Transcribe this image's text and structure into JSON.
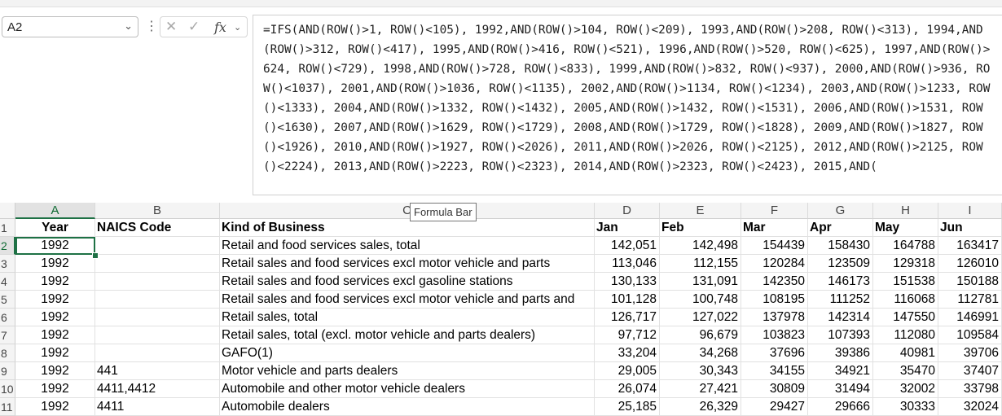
{
  "name_box": {
    "value": "A2"
  },
  "formula_bar": {
    "cancel_symbol": "✕",
    "enter_symbol": "✓",
    "fx_label": "fx",
    "formula": "=IFS(AND(ROW()>1, ROW()<105), 1992,AND(ROW()>104, ROW()<209), 1993,AND(ROW()>208, ROW()<313), 1994,AND(ROW()>312, ROW()<417), 1995,AND(ROW()>416, ROW()<521), 1996,AND(ROW()>520, ROW()<625), 1997,AND(ROW()>624, ROW()<729), 1998,AND(ROW()>728, ROW()<833), 1999,AND(ROW()>832, ROW()<937), 2000,AND(ROW()>936, ROW()<1037), 2001,AND(ROW()>1036, ROW()<1135), 2002,AND(ROW()>1134, ROW()<1234), 2003,AND(ROW()>1233, ROW()<1333), 2004,AND(ROW()>1332, ROW()<1432), 2005,AND(ROW()>1432, ROW()<1531), 2006,AND(ROW()>1531, ROW()<1630), 2007,AND(ROW()>1629, ROW()<1729), 2008,AND(ROW()>1729, ROW()<1828), 2009,AND(ROW()>1827, ROW()<1926), 2010,AND(ROW()>1927, ROW()<2026), 2011,AND(ROW()>2026, ROW()<2125), 2012,AND(ROW()>2125, ROW()<2224), 2013,AND(ROW()>2223, ROW()<2323), 2014,AND(ROW()>2323, ROW()<2423), 2015,AND(",
    "tooltip": "Formula Bar"
  },
  "columns": [
    "A",
    "B",
    "C",
    "D",
    "E",
    "F",
    "G",
    "H",
    "I"
  ],
  "header_row": [
    "Year",
    "NAICS  Code",
    "Kind of Business",
    "Jan",
    "Feb",
    "Mar",
    "Apr",
    "May",
    "Jun"
  ],
  "rows": [
    {
      "num": "2",
      "cells": [
        "1992",
        "",
        "Retail and food services sales, total",
        "142,051",
        "142,498",
        "154439",
        "158430",
        "164788",
        "163417"
      ]
    },
    {
      "num": "3",
      "cells": [
        "1992",
        "",
        "Retail sales and food services excl motor vehicle and parts",
        "113,046",
        "112,155",
        "120284",
        "123509",
        "129318",
        "126010"
      ]
    },
    {
      "num": "4",
      "cells": [
        "1992",
        "",
        "Retail sales and food services excl gasoline stations",
        "130,133",
        "131,091",
        "142350",
        "146173",
        "151538",
        "150188"
      ]
    },
    {
      "num": "5",
      "cells": [
        "1992",
        "",
        "Retail sales and food services excl motor vehicle and parts and",
        "101,128",
        "100,748",
        "108195",
        "111252",
        "116068",
        "112781"
      ]
    },
    {
      "num": "6",
      "cells": [
        "1992",
        "",
        "Retail sales, total",
        "126,717",
        "127,022",
        "137978",
        "142314",
        "147550",
        "146991"
      ]
    },
    {
      "num": "7",
      "cells": [
        "1992",
        "",
        "Retail sales, total (excl. motor vehicle and parts dealers)",
        "97,712",
        "96,679",
        "103823",
        "107393",
        "112080",
        "109584"
      ]
    },
    {
      "num": "8",
      "cells": [
        "1992",
        "",
        "GAFO(1)",
        "33,204",
        "34,268",
        "37696",
        "39386",
        "40981",
        "39706"
      ]
    },
    {
      "num": "9",
      "cells": [
        "1992",
        "441",
        "Motor vehicle and parts dealers",
        "29,005",
        "30,343",
        "34155",
        "34921",
        "35470",
        "37407"
      ]
    },
    {
      "num": "10",
      "cells": [
        "1992",
        "4411,4412",
        "Automobile and other motor vehicle dealers",
        "26,074",
        "27,421",
        "30809",
        "31494",
        "32002",
        "33798"
      ]
    },
    {
      "num": "11",
      "cells": [
        "1992",
        "4411",
        "Automobile dealers",
        "25,185",
        "26,329",
        "29427",
        "29666",
        "30333",
        "32024"
      ]
    }
  ],
  "header_row_num": "1"
}
